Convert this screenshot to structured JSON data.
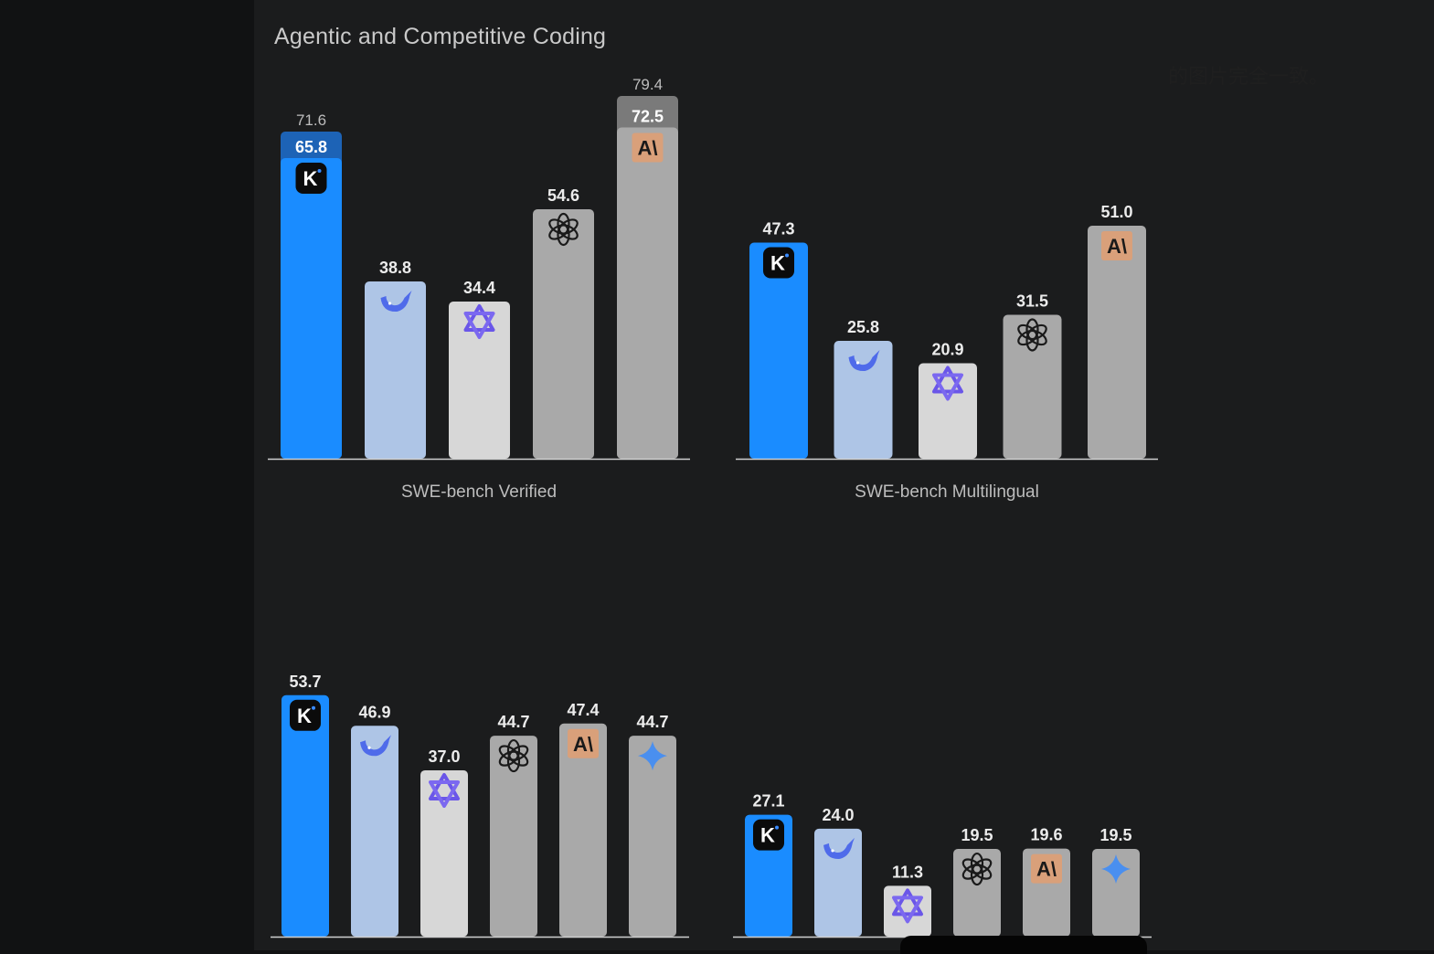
{
  "title": "Agentic and Competitive Coding",
  "stray_text": "的图片完全一致。",
  "colors": {
    "kimi": "#1a8cff",
    "kimi_ext": "#1d63b6",
    "deepseek": "#aec5e6",
    "qwen": "#d7d7d7",
    "openai": "#a9a9a9",
    "anthropic": "#a9a9a9",
    "anthropic_ext": "#7a7a7a",
    "gemini": "#a9a9a9"
  },
  "chart_data": [
    {
      "type": "bar",
      "xlabel": "SWE-bench Verified",
      "ylim": [
        0,
        85
      ],
      "categories": [
        "kimi",
        "deepseek",
        "qwen",
        "openai",
        "anthropic"
      ],
      "icons": [
        "kimi-logo-icon",
        "deepseek-whale-icon",
        "qwen-logo-icon",
        "openai-logo-icon",
        "anthropic-logo-icon"
      ],
      "values": [
        65.8,
        38.8,
        34.4,
        54.6,
        72.5
      ],
      "extended_values": [
        71.6,
        null,
        null,
        null,
        79.4
      ],
      "value_labels": [
        "65.8",
        "38.8",
        "34.4",
        "54.6",
        "72.5"
      ],
      "extended_labels": [
        "71.6",
        null,
        null,
        null,
        "79.4"
      ]
    },
    {
      "type": "bar",
      "xlabel": "SWE-bench Multilingual",
      "ylim": [
        0,
        85
      ],
      "categories": [
        "kimi",
        "deepseek",
        "qwen",
        "openai",
        "anthropic"
      ],
      "icons": [
        "kimi-logo-icon",
        "deepseek-whale-icon",
        "qwen-logo-icon",
        "openai-logo-icon",
        "anthropic-logo-icon"
      ],
      "values": [
        47.3,
        25.8,
        20.9,
        31.5,
        51.0
      ],
      "value_labels": [
        "47.3",
        "25.8",
        "20.9",
        "31.5",
        "51.0"
      ]
    },
    {
      "type": "bar",
      "xlabel": "",
      "ylim": [
        0,
        60
      ],
      "categories": [
        "kimi",
        "deepseek",
        "qwen",
        "openai",
        "anthropic",
        "gemini"
      ],
      "icons": [
        "kimi-logo-icon",
        "deepseek-whale-icon",
        "qwen-logo-icon",
        "openai-logo-icon",
        "anthropic-logo-icon",
        "gemini-star-icon"
      ],
      "values": [
        53.7,
        46.9,
        37.0,
        44.7,
        47.4,
        44.7
      ],
      "value_labels": [
        "53.7",
        "46.9",
        "37.0",
        "44.7",
        "47.4",
        "44.7"
      ]
    },
    {
      "type": "bar",
      "xlabel": "",
      "ylim": [
        0,
        60
      ],
      "categories": [
        "kimi",
        "deepseek",
        "qwen",
        "openai",
        "anthropic",
        "gemini"
      ],
      "icons": [
        "kimi-logo-icon",
        "deepseek-whale-icon",
        "qwen-logo-icon",
        "openai-logo-icon",
        "anthropic-logo-icon",
        "gemini-star-icon"
      ],
      "values": [
        27.1,
        24.0,
        11.3,
        19.5,
        19.6,
        19.5
      ],
      "value_labels": [
        "27.1",
        "24.0",
        "11.3",
        "19.5",
        "19.6",
        "19.5"
      ]
    }
  ]
}
